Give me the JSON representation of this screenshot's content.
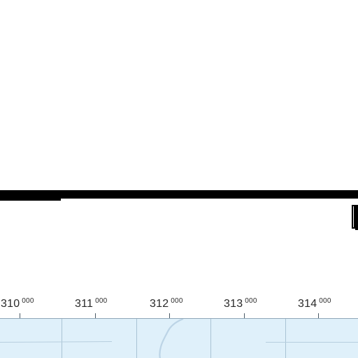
{
  "map": {
    "title": "",
    "colors": {
      "water": "#dff0fa",
      "grid_line": "#a9c3d4",
      "shore_line": "#bcd4e6",
      "frame": "#000000",
      "label": "#2a2a2a"
    },
    "easting_labels": [
      {
        "main": "310",
        "sup": "000"
      },
      {
        "main": "311",
        "sup": "000"
      },
      {
        "main": "312",
        "sup": "000"
      },
      {
        "main": "313",
        "sup": "000"
      },
      {
        "main": "314",
        "sup": "000"
      }
    ]
  }
}
